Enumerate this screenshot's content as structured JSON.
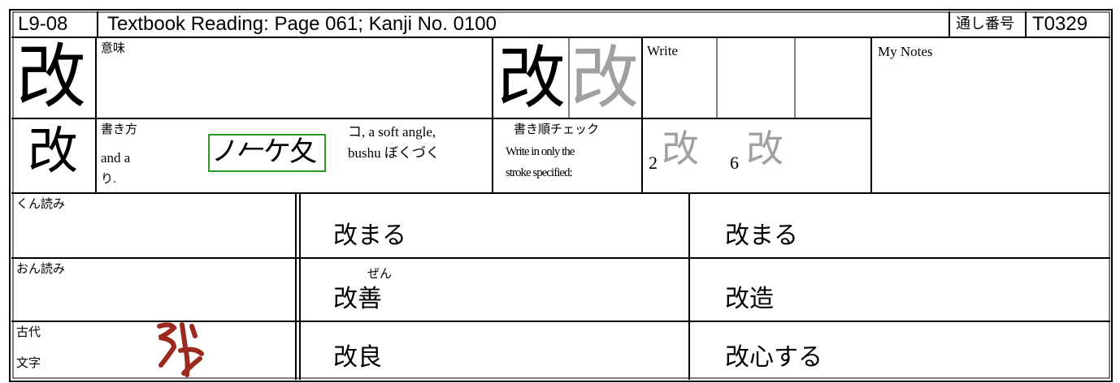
{
  "header": {
    "code": "L9-08",
    "title": "Textbook Reading: Page 061; Kanji No. 0100",
    "serial_label": "通し番号",
    "serial": "T0329"
  },
  "kanji": {
    "main": "改",
    "textbook_form": "改",
    "model": "改",
    "trace": "改"
  },
  "meaning": {
    "label": "意味"
  },
  "write": {
    "label": "Write"
  },
  "notes": {
    "label": "My Notes"
  },
  "how_to_write": {
    "label": "書き方",
    "text_left": [
      "and a",
      "り."
    ],
    "parts": "ノ𠂉ケ夂",
    "text_right": [
      "コ, a soft angle,",
      "bushu ぼくづく"
    ]
  },
  "stroke_check": {
    "label": "書き順チェック",
    "instructions": [
      "Write in only the",
      "stroke specified:"
    ],
    "strokes": [
      {
        "number": "2",
        "kanji": "改"
      },
      {
        "number": "6",
        "kanji": "改"
      }
    ]
  },
  "readings": {
    "kun": {
      "label": "くん読み",
      "words": [
        {
          "text": "改まる"
        },
        {
          "text": "改まる"
        }
      ]
    },
    "on": {
      "label": "おん読み",
      "words": [
        {
          "text": "改善",
          "furigana": "ぜん"
        },
        {
          "text": "改造"
        }
      ]
    },
    "ancient": {
      "label": [
        "古代",
        "文字"
      ],
      "words": [
        {
          "text": "改良"
        },
        {
          "text": "改心する"
        }
      ]
    }
  }
}
